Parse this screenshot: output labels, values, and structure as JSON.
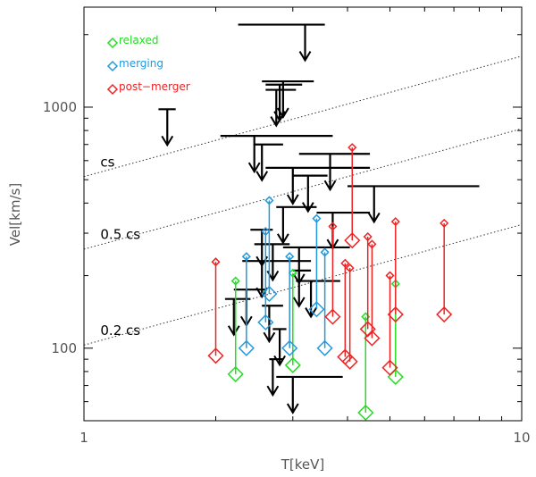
{
  "chart_data": {
    "type": "scatter",
    "title": "",
    "xlabel": "T[keV]",
    "ylabel": "Vel[km/s]",
    "xscale": "log",
    "yscale": "log",
    "xlim": [
      1,
      10
    ],
    "ylim": [
      50,
      2600
    ],
    "x_ticks": [
      {
        "value": 1,
        "label": "1"
      },
      {
        "value": 10,
        "label": "10"
      }
    ],
    "y_ticks": [
      {
        "value": 100,
        "label": "100"
      },
      {
        "value": 1000,
        "label": "1000"
      }
    ],
    "legend": {
      "position": "top-left",
      "entries": [
        {
          "label": "relaxed",
          "color": "#22dd22"
        },
        {
          "label": "merging",
          "color": "#2299dd"
        },
        {
          "label": "post−merger",
          "color": "#ee2222"
        }
      ]
    },
    "reference_lines": [
      {
        "label": "cs",
        "factor": 1.0
      },
      {
        "label": "0.5 cs",
        "factor": 0.5
      },
      {
        "label": "0.2 cs",
        "factor": 0.2
      }
    ],
    "reference_line_anchor": {
      "t": 1,
      "v_cs": 515
    },
    "reference_line_slope": 0.5,
    "series": [
      {
        "name": "relaxed",
        "color": "#22dd22",
        "points": [
          {
            "t": 2.22,
            "lo": 78,
            "hi": 190
          },
          {
            "t": 3.0,
            "lo": 85,
            "hi": 205
          },
          {
            "t": 4.4,
            "lo": 54,
            "hi": 135
          },
          {
            "t": 5.15,
            "lo": 76,
            "hi": 185
          }
        ]
      },
      {
        "name": "merging",
        "color": "#2299dd",
        "points": [
          {
            "t": 2.35,
            "lo": 100,
            "hi": 240
          },
          {
            "t": 2.6,
            "lo": 128,
            "hi": 305
          },
          {
            "t": 2.65,
            "lo": 168,
            "hi": 410
          },
          {
            "t": 2.95,
            "lo": 100,
            "hi": 240
          },
          {
            "t": 3.4,
            "lo": 145,
            "hi": 345
          },
          {
            "t": 3.55,
            "lo": 100,
            "hi": 250
          }
        ]
      },
      {
        "name": "post−merger",
        "color": "#ee2222",
        "points": [
          {
            "t": 2.0,
            "lo": 93,
            "hi": 228
          },
          {
            "t": 3.7,
            "lo": 135,
            "hi": 320
          },
          {
            "t": 3.95,
            "lo": 92,
            "hi": 225
          },
          {
            "t": 4.05,
            "lo": 88,
            "hi": 215
          },
          {
            "t": 4.1,
            "lo": 280,
            "hi": 680
          },
          {
            "t": 4.45,
            "lo": 120,
            "hi": 290
          },
          {
            "t": 4.55,
            "lo": 110,
            "hi": 270
          },
          {
            "t": 5.0,
            "lo": 83,
            "hi": 200
          },
          {
            "t": 5.15,
            "lo": 138,
            "hi": 335
          },
          {
            "t": 6.65,
            "lo": 138,
            "hi": 330
          }
        ]
      }
    ],
    "upper_limits": {
      "color": "#000000",
      "items": [
        {
          "t1": 2.25,
          "t2": 3.55,
          "v": 2200,
          "arrow_t": 3.2
        },
        {
          "t1": 1.48,
          "t2": 1.62,
          "v": 980,
          "arrow_t": 1.55
        },
        {
          "t1": 2.55,
          "t2": 3.35,
          "v": 1280,
          "arrow_t": 2.85
        },
        {
          "t1": 2.6,
          "t2": 3.15,
          "v": 1240,
          "arrow_t": 2.8
        },
        {
          "t1": 2.6,
          "t2": 3.05,
          "v": 1180,
          "arrow_t": 2.75
        },
        {
          "t1": 2.05,
          "t2": 3.7,
          "v": 760,
          "arrow_t": 2.45
        },
        {
          "t1": 2.45,
          "t2": 2.85,
          "v": 700,
          "arrow_t": 2.55
        },
        {
          "t1": 3.1,
          "t2": 4.5,
          "v": 640,
          "arrow_t": 3.65
        },
        {
          "t1": 2.6,
          "t2": 4.5,
          "v": 560,
          "arrow_t": 3.0
        },
        {
          "t1": 3.0,
          "t2": 3.6,
          "v": 520,
          "arrow_t": 3.25
        },
        {
          "t1": 4.0,
          "t2": 8.0,
          "v": 470,
          "arrow_t": 4.6
        },
        {
          "t1": 2.75,
          "t2": 3.4,
          "v": 385,
          "arrow_t": 2.85
        },
        {
          "t1": 3.4,
          "t2": 4.5,
          "v": 365,
          "arrow_t": 3.7
        },
        {
          "t1": 2.4,
          "t2": 2.7,
          "v": 310,
          "arrow_t": 2.55
        },
        {
          "t1": 2.45,
          "t2": 2.95,
          "v": 270,
          "arrow_t": 2.7
        },
        {
          "t1": 2.85,
          "t2": 4.05,
          "v": 262,
          "arrow_t": 3.1
        },
        {
          "t1": 2.3,
          "t2": 3.3,
          "v": 230,
          "arrow_t": 2.55
        },
        {
          "t1": 3.0,
          "t2": 3.3,
          "v": 210,
          "arrow_t": 3.1
        },
        {
          "t1": 3.05,
          "t2": 3.85,
          "v": 190,
          "arrow_t": 3.3
        },
        {
          "t1": 2.2,
          "t2": 2.6,
          "v": 175,
          "arrow_t": 2.35
        },
        {
          "t1": 2.1,
          "t2": 2.4,
          "v": 160,
          "arrow_t": 2.2
        },
        {
          "t1": 2.55,
          "t2": 2.85,
          "v": 150,
          "arrow_t": 2.65
        },
        {
          "t1": 2.7,
          "t2": 2.9,
          "v": 120,
          "arrow_t": 2.8
        },
        {
          "t1": 2.65,
          "t2": 2.85,
          "v": 90,
          "arrow_t": 2.7
        },
        {
          "t1": 2.75,
          "t2": 3.9,
          "v": 76,
          "arrow_t": 3.0
        }
      ]
    }
  }
}
